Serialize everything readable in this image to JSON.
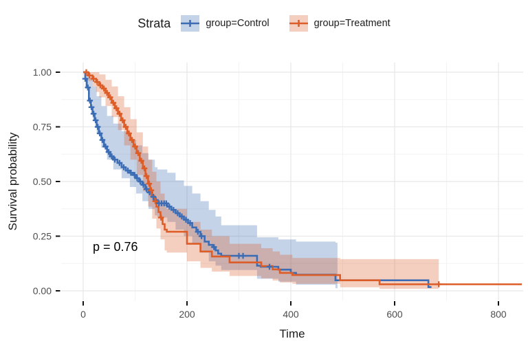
{
  "chart_data": {
    "type": "line",
    "subtype": "kaplan-meier-step",
    "title": "",
    "xlabel": "Time",
    "ylabel": "Survival probability",
    "annotation": {
      "text": "p = 0.76",
      "time": 18,
      "survival": 0.2
    },
    "legend": {
      "title": "Strata",
      "position": "top",
      "entries": [
        {
          "label": "group=Control",
          "color": "#3C6DB4"
        },
        {
          "label": "group=Treatment",
          "color": "#DC5D28"
        }
      ]
    },
    "axes": {
      "xlim": [
        0,
        845
      ],
      "ylim": [
        0,
        1
      ],
      "x_ticks": {
        "values": [
          0,
          200,
          400,
          600,
          800
        ],
        "labels": [
          "0",
          "200",
          "400",
          "600",
          "800"
        ]
      },
      "y_ticks": {
        "values": [
          0,
          0.25,
          0.5,
          0.75,
          1
        ],
        "labels": [
          "0.00",
          "0.25",
          "0.50",
          "0.75",
          "1.00"
        ]
      },
      "x_minor": [
        100,
        300,
        500,
        700
      ],
      "y_minor": [
        0.125,
        0.375,
        0.625,
        0.875
      ],
      "grid": true
    },
    "colors": {
      "grid_major": "#E8E8E8",
      "grid_minor": "#F3F3F3",
      "tick": "#111111",
      "tick_label": "#4d4d4d",
      "band_opacity": 0.3
    },
    "series": [
      {
        "name": "group=Control",
        "color": "#3C6DB4",
        "end_time": 671,
        "steps": [
          [
            0,
            1
          ],
          [
            4,
            0.97
          ],
          [
            7,
            0.93
          ],
          [
            11,
            0.87
          ],
          [
            15,
            0.84
          ],
          [
            18,
            0.81
          ],
          [
            22,
            0.78
          ],
          [
            26,
            0.75
          ],
          [
            30,
            0.72
          ],
          [
            35,
            0.69
          ],
          [
            40,
            0.66
          ],
          [
            46,
            0.635
          ],
          [
            52,
            0.615
          ],
          [
            58,
            0.6
          ],
          [
            66,
            0.585
          ],
          [
            74,
            0.565
          ],
          [
            82,
            0.55
          ],
          [
            90,
            0.54
          ],
          [
            96,
            0.53
          ],
          [
            102,
            0.515
          ],
          [
            108,
            0.5
          ],
          [
            114,
            0.485
          ],
          [
            120,
            0.465
          ],
          [
            126,
            0.45
          ],
          [
            132,
            0.43
          ],
          [
            138,
            0.415
          ],
          [
            143,
            0.4
          ],
          [
            162,
            0.385
          ],
          [
            170,
            0.37
          ],
          [
            178,
            0.355
          ],
          [
            186,
            0.34
          ],
          [
            194,
            0.325
          ],
          [
            202,
            0.31
          ],
          [
            210,
            0.29
          ],
          [
            218,
            0.27
          ],
          [
            226,
            0.25
          ],
          [
            234,
            0.225
          ],
          [
            242,
            0.21
          ],
          [
            250,
            0.2
          ],
          [
            255,
            0.185
          ],
          [
            260,
            0.17
          ],
          [
            266,
            0.16
          ],
          [
            335,
            0.115
          ],
          [
            342,
            0.11
          ],
          [
            376,
            0.097
          ],
          [
            400,
            0.082
          ],
          [
            410,
            0.074
          ],
          [
            486,
            0.048
          ],
          [
            665,
            0.017
          ]
        ],
        "censors": [
          [
            4,
            0.97
          ],
          [
            9,
            0.93
          ],
          [
            13,
            0.87
          ],
          [
            16,
            0.84
          ],
          [
            20,
            0.81
          ],
          [
            24,
            0.78
          ],
          [
            28,
            0.75
          ],
          [
            32,
            0.72
          ],
          [
            37,
            0.69
          ],
          [
            43,
            0.66
          ],
          [
            49,
            0.635
          ],
          [
            55,
            0.615
          ],
          [
            61,
            0.6
          ],
          [
            70,
            0.585
          ],
          [
            78,
            0.565
          ],
          [
            86,
            0.55
          ],
          [
            92,
            0.54
          ],
          [
            99,
            0.53
          ],
          [
            104,
            0.515
          ],
          [
            110,
            0.5
          ],
          [
            116,
            0.485
          ],
          [
            122,
            0.465
          ],
          [
            128,
            0.45
          ],
          [
            135,
            0.43
          ],
          [
            140,
            0.415
          ],
          [
            146,
            0.4
          ],
          [
            151,
            0.4
          ],
          [
            156,
            0.4
          ],
          [
            160,
            0.4
          ],
          [
            166,
            0.385
          ],
          [
            174,
            0.37
          ],
          [
            182,
            0.355
          ],
          [
            190,
            0.34
          ],
          [
            198,
            0.325
          ],
          [
            206,
            0.31
          ],
          [
            221,
            0.27
          ],
          [
            228,
            0.25
          ],
          [
            252,
            0.2
          ],
          [
            300,
            0.16
          ],
          [
            308,
            0.16
          ],
          [
            359,
            0.11
          ]
        ],
        "band": {
          "end_time": 490,
          "points": [
            [
              0,
              1,
              1
            ],
            [
              4,
              0.93,
              1
            ],
            [
              11,
              0.86,
              0.975
            ],
            [
              18,
              0.79,
              0.935
            ],
            [
              26,
              0.72,
              0.89
            ],
            [
              35,
              0.655,
              0.845
            ],
            [
              46,
              0.6,
              0.8
            ],
            [
              58,
              0.555,
              0.765
            ],
            [
              74,
              0.515,
              0.73
            ],
            [
              90,
              0.475,
              0.69
            ],
            [
              102,
              0.445,
              0.665
            ],
            [
              114,
              0.41,
              0.63
            ],
            [
              126,
              0.375,
              0.6
            ],
            [
              138,
              0.345,
              0.565
            ],
            [
              143,
              0.335,
              0.555
            ],
            [
              162,
              0.315,
              0.54
            ],
            [
              178,
              0.28,
              0.505
            ],
            [
              194,
              0.25,
              0.48
            ],
            [
              210,
              0.215,
              0.445
            ],
            [
              226,
              0.175,
              0.41
            ],
            [
              242,
              0.135,
              0.37
            ],
            [
              255,
              0.115,
              0.34
            ],
            [
              266,
              0.095,
              0.3
            ],
            [
              335,
              0.055,
              0.245
            ],
            [
              376,
              0.042,
              0.235
            ],
            [
              410,
              0.028,
              0.225
            ],
            [
              486,
              0.012,
              0.22
            ]
          ]
        }
      },
      {
        "name": "group=Treatment",
        "color": "#DC5D28",
        "end_time": 845,
        "steps": [
          [
            0,
            1
          ],
          [
            10,
            0.985
          ],
          [
            18,
            0.97
          ],
          [
            25,
            0.955
          ],
          [
            31,
            0.94
          ],
          [
            37,
            0.925
          ],
          [
            43,
            0.905
          ],
          [
            49,
            0.885
          ],
          [
            55,
            0.86
          ],
          [
            61,
            0.835
          ],
          [
            67,
            0.81
          ],
          [
            73,
            0.78
          ],
          [
            79,
            0.75
          ],
          [
            85,
            0.72
          ],
          [
            91,
            0.69
          ],
          [
            97,
            0.66
          ],
          [
            103,
            0.63
          ],
          [
            109,
            0.595
          ],
          [
            115,
            0.56
          ],
          [
            120,
            0.525
          ],
          [
            125,
            0.49
          ],
          [
            129,
            0.46
          ],
          [
            133,
            0.435
          ],
          [
            137,
            0.41
          ],
          [
            141,
            0.385
          ],
          [
            145,
            0.36
          ],
          [
            149,
            0.335
          ],
          [
            153,
            0.305
          ],
          [
            157,
            0.28
          ],
          [
            161,
            0.27
          ],
          [
            200,
            0.215
          ],
          [
            226,
            0.18
          ],
          [
            248,
            0.157
          ],
          [
            282,
            0.13
          ],
          [
            343,
            0.113
          ],
          [
            365,
            0.098
          ],
          [
            379,
            0.082
          ],
          [
            403,
            0.072
          ],
          [
            495,
            0.048
          ],
          [
            571,
            0.03
          ]
        ],
        "censors": [
          [
            6,
            1
          ],
          [
            12,
            0.985
          ],
          [
            20,
            0.97
          ],
          [
            27,
            0.955
          ],
          [
            33,
            0.94
          ],
          [
            40,
            0.925
          ],
          [
            46,
            0.905
          ],
          [
            52,
            0.885
          ],
          [
            58,
            0.86
          ],
          [
            64,
            0.835
          ],
          [
            70,
            0.81
          ],
          [
            76,
            0.78
          ],
          [
            82,
            0.75
          ],
          [
            88,
            0.72
          ],
          [
            94,
            0.69
          ],
          [
            100,
            0.66
          ],
          [
            106,
            0.63
          ],
          [
            112,
            0.595
          ],
          [
            118,
            0.56
          ],
          [
            122,
            0.525
          ],
          [
            127,
            0.49
          ],
          [
            131,
            0.46
          ],
          [
            139,
            0.41
          ],
          [
            150,
            0.335
          ],
          [
            685,
            0.03
          ]
        ],
        "band": {
          "end_time": 685,
          "points": [
            [
              0,
              1,
              1
            ],
            [
              10,
              0.96,
              1
            ],
            [
              18,
              0.935,
              1
            ],
            [
              25,
              0.91,
              1
            ],
            [
              31,
              0.885,
              0.99
            ],
            [
              43,
              0.845,
              0.965
            ],
            [
              55,
              0.795,
              0.935
            ],
            [
              67,
              0.735,
              0.89
            ],
            [
              79,
              0.665,
              0.84
            ],
            [
              91,
              0.6,
              0.785
            ],
            [
              103,
              0.53,
              0.725
            ],
            [
              115,
              0.455,
              0.66
            ],
            [
              125,
              0.385,
              0.6
            ],
            [
              133,
              0.33,
              0.545
            ],
            [
              141,
              0.285,
              0.5
            ],
            [
              149,
              0.235,
              0.445
            ],
            [
              157,
              0.185,
              0.385
            ],
            [
              161,
              0.175,
              0.375
            ],
            [
              200,
              0.135,
              0.315
            ],
            [
              226,
              0.105,
              0.28
            ],
            [
              248,
              0.088,
              0.25
            ],
            [
              282,
              0.068,
              0.215
            ],
            [
              343,
              0.057,
              0.195
            ],
            [
              365,
              0.047,
              0.18
            ],
            [
              379,
              0.038,
              0.165
            ],
            [
              403,
              0.032,
              0.15
            ],
            [
              495,
              0.016,
              0.145
            ],
            [
              571,
              0.009,
              0.145
            ]
          ]
        }
      }
    ]
  }
}
